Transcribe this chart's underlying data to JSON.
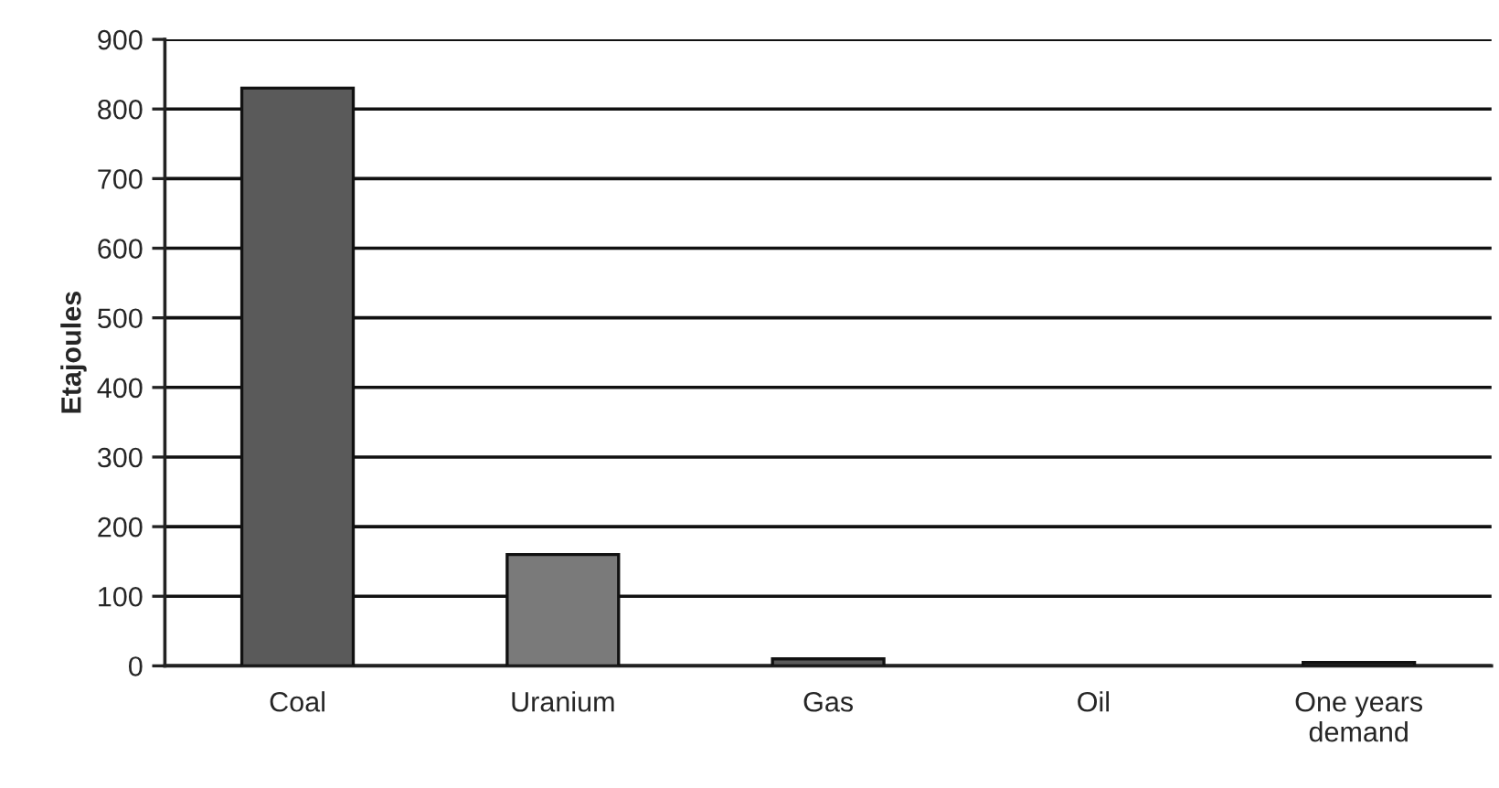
{
  "chart_data": {
    "type": "bar",
    "ylabel": "Etajoules",
    "categories": [
      "Coal",
      "Uranium",
      "Gas",
      "Oil",
      "One years\ndemand"
    ],
    "values": [
      830,
      160,
      10,
      null,
      5
    ],
    "colors": [
      "#5a5a5a",
      "#7a7a7a",
      "#5a5a5a",
      "#5a5a5a",
      "#3a3a3a"
    ],
    "ylim": [
      0,
      900
    ],
    "yticks": [
      0,
      100,
      200,
      300,
      400,
      500,
      600,
      700,
      800,
      900
    ],
    "grid": "y"
  }
}
